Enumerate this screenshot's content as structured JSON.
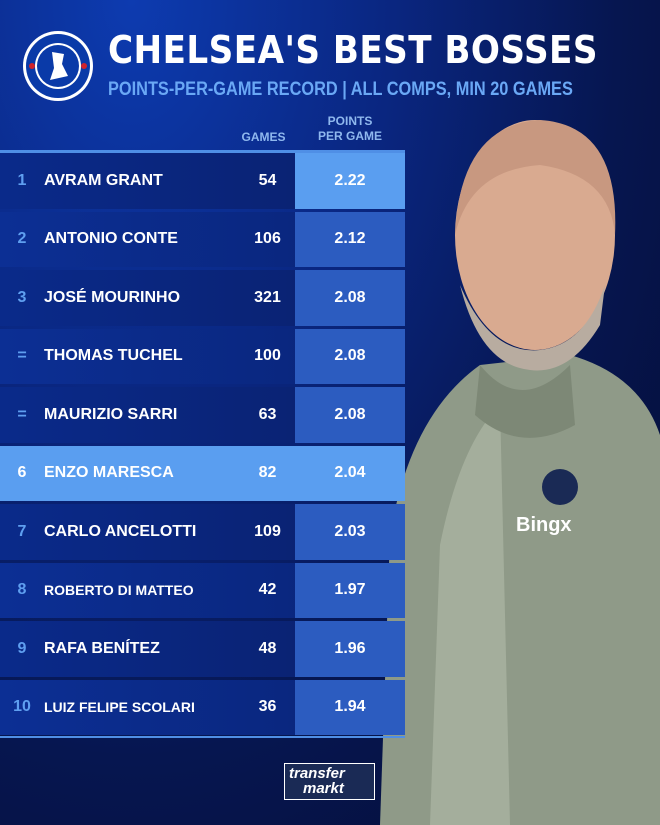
{
  "header": {
    "title": "CHELSEA'S BEST BOSSES",
    "subtitle": "POINTS-PER-GAME RECORD | ALL COMPS, MIN 20 GAMES",
    "logo_text": "CHELSEA FOOTBALL CLUB"
  },
  "chart_data": {
    "type": "table",
    "columns": [
      "",
      "",
      "GAMES",
      "POINTS PER GAME"
    ],
    "col_games": "GAMES",
    "col_ppg_1": "POINTS",
    "col_ppg_2": "PER GAME",
    "rows": [
      {
        "rank": "1",
        "name": "AVRAM GRANT",
        "games": "54",
        "ppg": "2.22"
      },
      {
        "rank": "2",
        "name": "ANTONIO CONTE",
        "games": "106",
        "ppg": "2.12"
      },
      {
        "rank": "3",
        "name": "JOSÉ MOURINHO",
        "games": "321",
        "ppg": "2.08"
      },
      {
        "rank": "=",
        "name": "THOMAS TUCHEL",
        "games": "100",
        "ppg": "2.08"
      },
      {
        "rank": "=",
        "name": "MAURIZIO SARRI",
        "games": "63",
        "ppg": "2.08"
      },
      {
        "rank": "6",
        "name": "ENZO MARESCA",
        "games": "82",
        "ppg": "2.04",
        "highlight": true
      },
      {
        "rank": "7",
        "name": "CARLO ANCELOTTI",
        "games": "109",
        "ppg": "2.03"
      },
      {
        "rank": "8",
        "name": "ROBERTO DI MATTEO",
        "games": "42",
        "ppg": "1.97"
      },
      {
        "rank": "9",
        "name": "RAFA BENÍTEZ",
        "games": "48",
        "ppg": "1.96"
      },
      {
        "rank": "10",
        "name": "LUIZ FELIPE SCOLARI",
        "games": "36",
        "ppg": "1.94"
      }
    ]
  },
  "colors": {
    "accent": "#5a9ef0",
    "row": "#0a2a8a",
    "ppg_cell": "#2c5cc0",
    "subtitle": "#6aa8f5"
  },
  "footer": {
    "brand_line1": "transfer",
    "brand_line2": "markt"
  },
  "photo": {
    "jacket_text": "Bingx"
  }
}
